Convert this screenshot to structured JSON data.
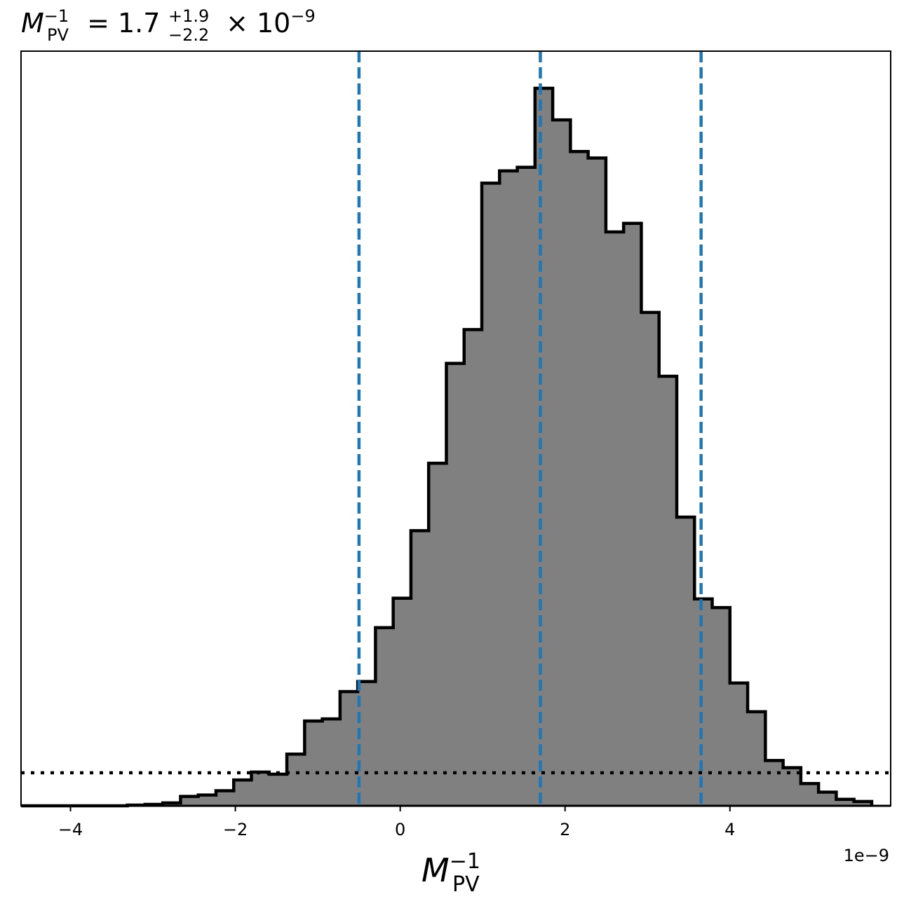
{
  "chart_data": {
    "type": "histogram",
    "title": {
      "symbol": "M",
      "superscript": "−1",
      "subscript": "PV",
      "equals": " = ",
      "value": "1.7",
      "err_plus": "+1.9",
      "err_minus": "−2.2",
      "times": " × 10",
      "exponent": "−9"
    },
    "xlabel": {
      "symbol": "M",
      "superscript": "−1",
      "subscript": "PV"
    },
    "x_offset_label": "1e−9",
    "x_scale": 1e-09,
    "xlim": [
      -4.6,
      5.95
    ],
    "ylim": [
      0,
      1.0
    ],
    "x_ticks": [
      {
        "value": -4,
        "label": "−4"
      },
      {
        "value": -2,
        "label": "−2"
      },
      {
        "value": 0,
        "label": "0"
      },
      {
        "value": 2,
        "label": "2"
      },
      {
        "value": 4,
        "label": "4"
      }
    ],
    "y_ticks_shown": false,
    "bin_edges": [
      -4.6,
      -4.385,
      -4.17,
      -3.955,
      -3.74,
      -3.525,
      -3.31,
      -3.095,
      -2.88,
      -2.665,
      -2.45,
      -2.235,
      -2.02,
      -1.805,
      -1.59,
      -1.375,
      -1.16,
      -0.945,
      -0.73,
      -0.515,
      -0.3,
      -0.085,
      0.13,
      0.345,
      0.56,
      0.775,
      0.99,
      1.205,
      1.42,
      1.635,
      1.85,
      2.065,
      2.28,
      2.495,
      2.71,
      2.925,
      3.14,
      3.355,
      3.57,
      3.785,
      4.0,
      4.215,
      4.43,
      4.645,
      4.86,
      5.075,
      5.29,
      5.505,
      5.72
    ],
    "bin_heights": [
      0,
      0,
      0,
      0,
      0,
      0,
      0.001,
      0.002,
      0.004,
      0.013,
      0.015,
      0.021,
      0.036,
      0.047,
      0.044,
      0.072,
      0.118,
      0.121,
      0.159,
      0.173,
      0.248,
      0.289,
      0.383,
      0.477,
      0.616,
      0.663,
      0.867,
      0.884,
      0.889,
      0.999,
      0.955,
      0.911,
      0.902,
      0.799,
      0.811,
      0.687,
      0.598,
      0.402,
      0.288,
      0.276,
      0.171,
      0.131,
      0.063,
      0.053,
      0.031,
      0.019,
      0.009,
      0.006
    ],
    "hist_fill": "#808080",
    "hist_edge": "#000000",
    "vlines": [
      {
        "x": -0.5,
        "role": "lower-quantile"
      },
      {
        "x": 1.7,
        "role": "median"
      },
      {
        "x": 3.65,
        "role": "upper-quantile"
      }
    ],
    "vline_color": "#1f77b4",
    "vline_style": "dashed",
    "hline": {
      "y": 0.046,
      "style": "dotted",
      "color": "#000000"
    },
    "grid": false,
    "legend": "none"
  }
}
